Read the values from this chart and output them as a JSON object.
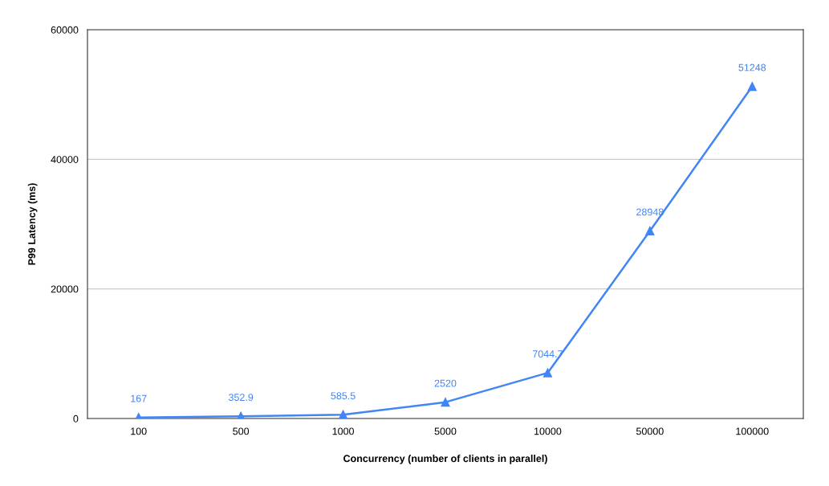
{
  "chart_data": {
    "type": "line",
    "xlabel": "Concurrency (number of clients in parallel)",
    "ylabel": "P99 Latency (ms)",
    "categories": [
      "100",
      "500",
      "1000",
      "5000",
      "10000",
      "50000",
      "100000"
    ],
    "series": [
      {
        "color": "#4285f4",
        "values": [
          167,
          352.9,
          585.5,
          2520,
          7044.7,
          28948,
          51248
        ]
      }
    ],
    "ylim": [
      0,
      60000
    ],
    "yticks": [
      0,
      20000,
      40000,
      60000
    ],
    "grid": "y",
    "marker": "triangle",
    "line_style": "solid",
    "data_labels": true
  }
}
